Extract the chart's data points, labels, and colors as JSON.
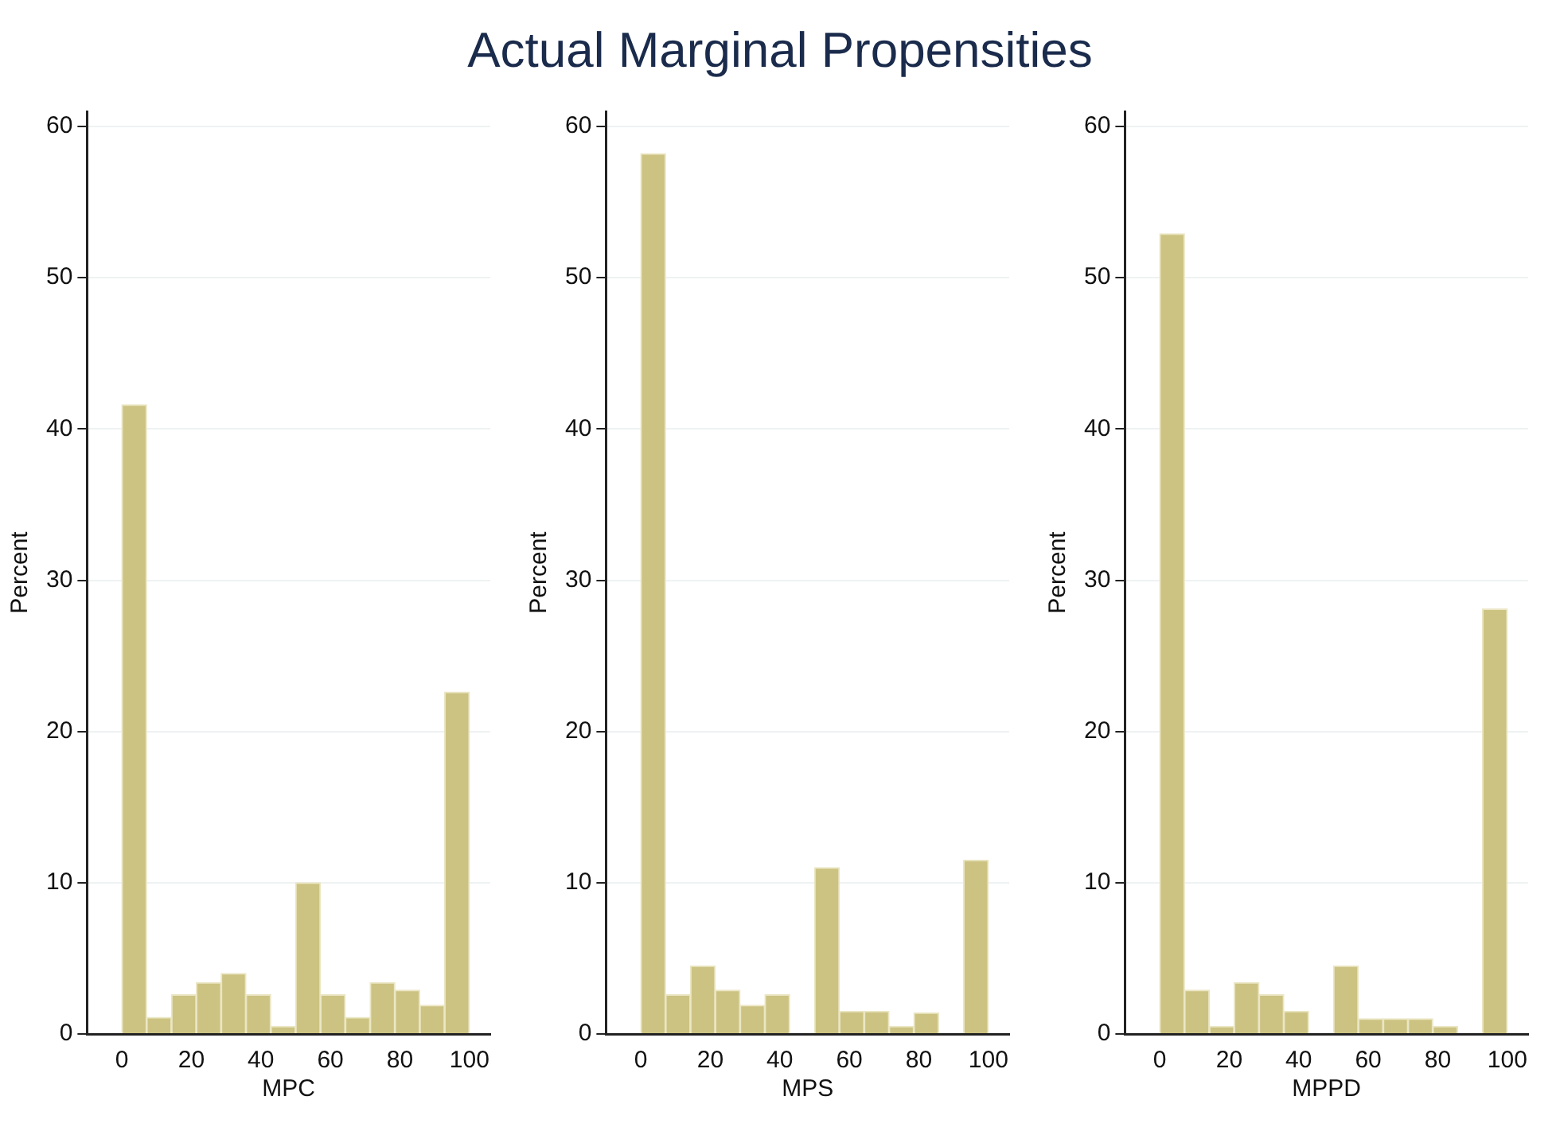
{
  "chart_data": [
    {
      "type": "histogram",
      "xlabel": "MPC",
      "ylabel": "Percent",
      "color": "#ccc382",
      "grid": "y",
      "bins": [
        0,
        7.14,
        14.29,
        21.43,
        28.57,
        35.71,
        42.86,
        50,
        57.14,
        64.29,
        71.43,
        78.57,
        85.71,
        92.86,
        100
      ],
      "values": [
        41.6,
        1.1,
        2.6,
        3.4,
        4.0,
        2.6,
        0.5,
        10.0,
        2.6,
        1.1,
        3.4,
        2.9,
        1.9,
        22.6
      ],
      "xlim": [
        -10,
        106
      ],
      "xticks": [
        0,
        20,
        40,
        60,
        80,
        100
      ],
      "ylim": [
        0,
        61
      ],
      "yticks": [
        0,
        10,
        20,
        30,
        40,
        50,
        60
      ]
    },
    {
      "type": "histogram",
      "title": "Actual Marginal Propensities",
      "xlabel": "MPS",
      "ylabel": "Percent",
      "color": "#ccc382",
      "grid": "y",
      "bins": [
        0,
        7.14,
        14.29,
        21.43,
        28.57,
        35.71,
        42.86,
        50,
        57.14,
        64.29,
        71.43,
        78.57,
        85.71,
        92.86,
        100
      ],
      "values": [
        58.2,
        2.6,
        4.5,
        2.9,
        1.9,
        2.6,
        0,
        11.0,
        1.5,
        1.5,
        0.5,
        1.4,
        0,
        11.5
      ],
      "xlim": [
        -10,
        106
      ],
      "xticks": [
        0,
        20,
        40,
        60,
        80,
        100
      ],
      "ylim": [
        0,
        61
      ],
      "yticks": [
        0,
        10,
        20,
        30,
        40,
        50,
        60
      ]
    },
    {
      "type": "histogram",
      "xlabel": "MPPD",
      "ylabel": "Percent",
      "color": "#ccc382",
      "grid": "y",
      "bins": [
        0,
        7.14,
        14.29,
        21.43,
        28.57,
        35.71,
        42.86,
        50,
        57.14,
        64.29,
        71.43,
        78.57,
        85.71,
        92.86,
        100
      ],
      "values": [
        52.9,
        2.9,
        0.5,
        3.4,
        2.6,
        1.5,
        0,
        4.5,
        1.0,
        1.0,
        1.0,
        0.5,
        0,
        28.1
      ],
      "xlim": [
        -10,
        106
      ],
      "xticks": [
        0,
        20,
        40,
        60,
        80,
        100
      ],
      "ylim": [
        0,
        61
      ],
      "yticks": [
        0,
        10,
        20,
        30,
        40,
        50,
        60
      ]
    }
  ]
}
